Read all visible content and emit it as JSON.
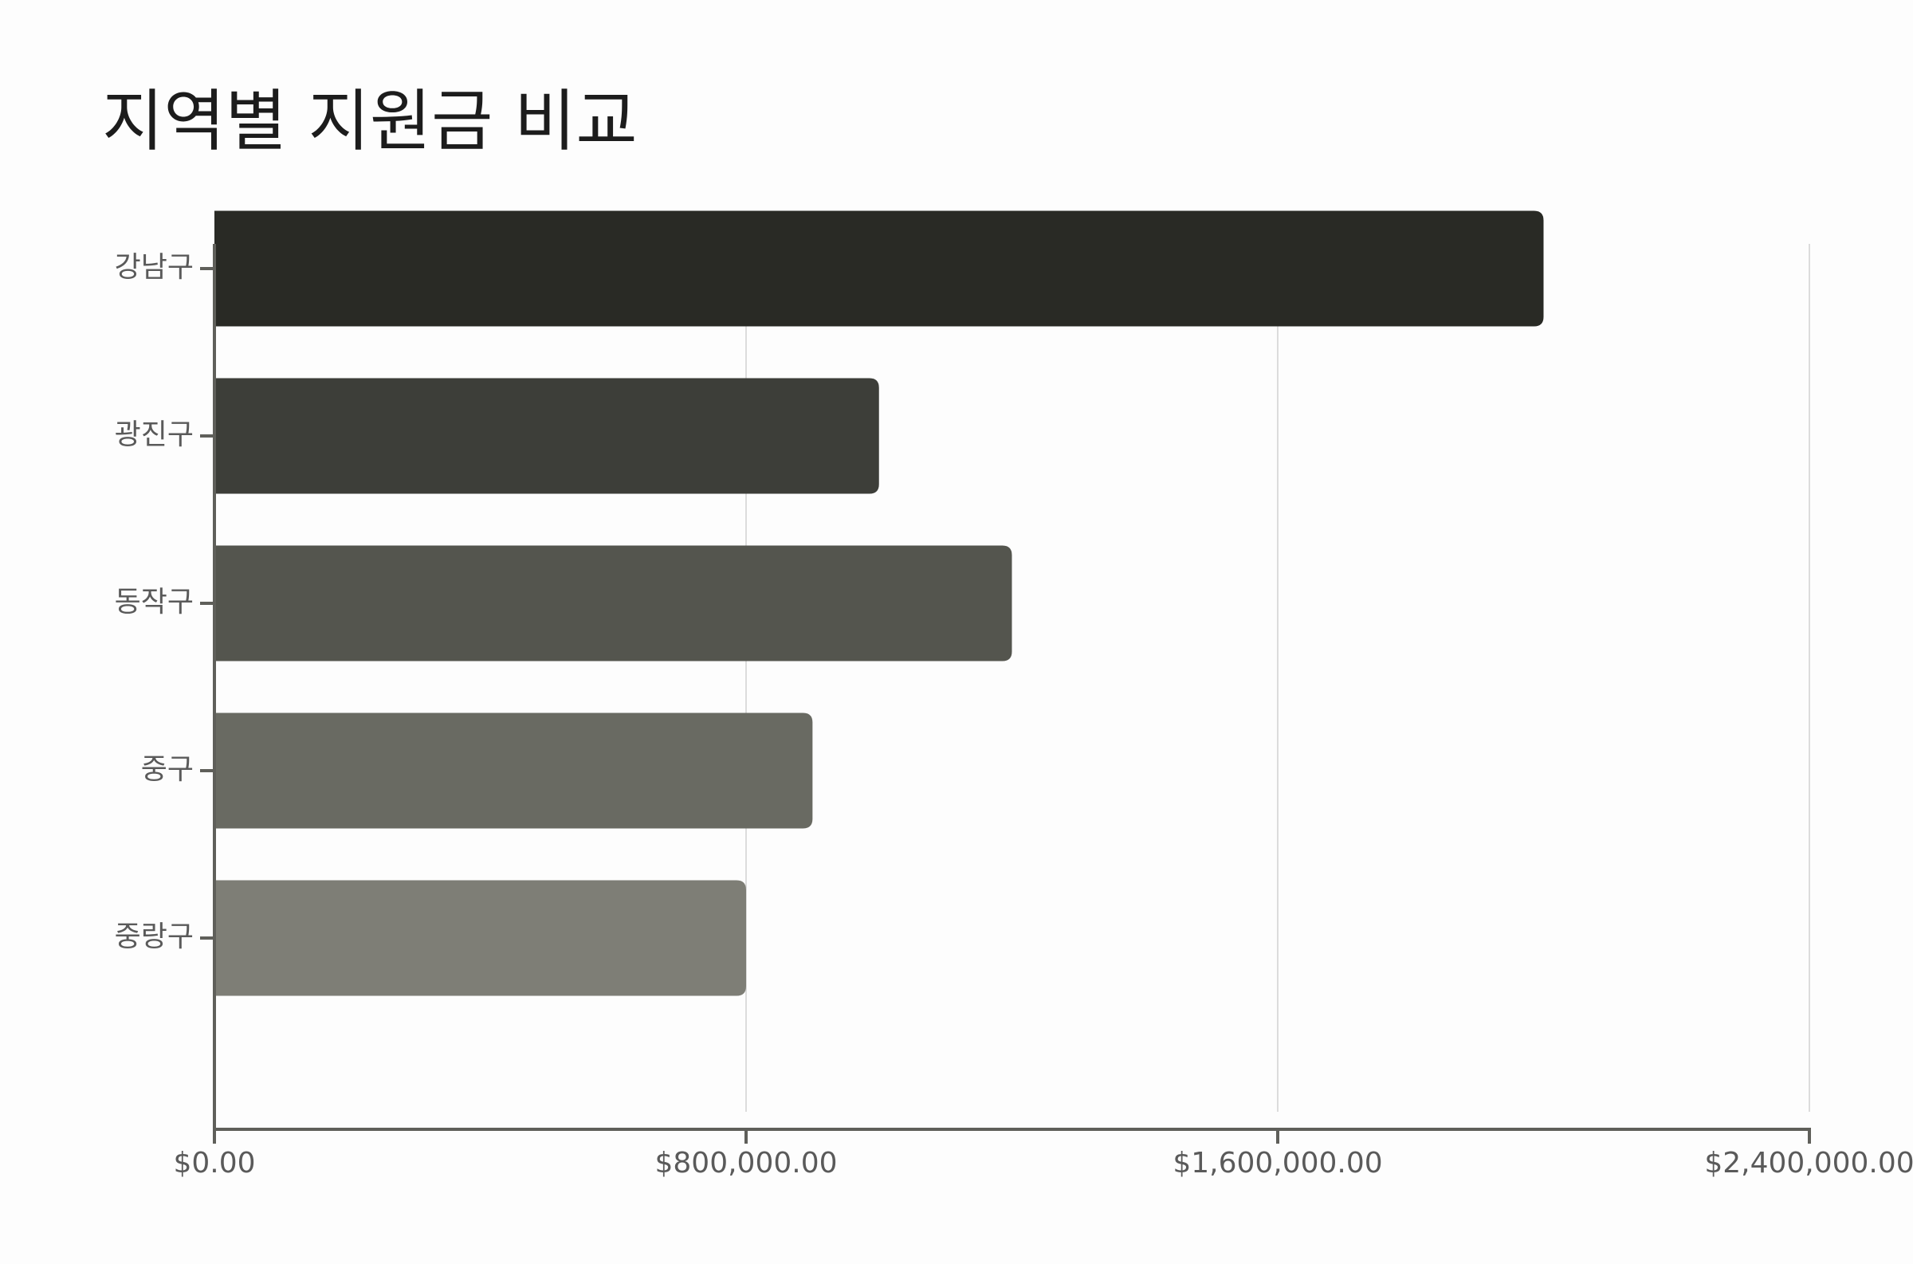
{
  "chart_data": {
    "type": "bar",
    "orientation": "horizontal",
    "title": "지역별 지원금 비교",
    "categories": [
      "강남구",
      "광진구",
      "동작구",
      "중구",
      "중랑구"
    ],
    "values": [
      2000000,
      1000000,
      1200000,
      900000,
      800000
    ],
    "colors": [
      "#292a25",
      "#3d3e39",
      "#54554e",
      "#696a62",
      "#7e7e76"
    ],
    "xlim": [
      0,
      2400000
    ],
    "xticks": [
      {
        "value": 0,
        "label": "$0.00"
      },
      {
        "value": 800000,
        "label": "$800,000.00"
      },
      {
        "value": 1600000,
        "label": "$1,600,000.00"
      },
      {
        "value": 2400000,
        "label": "$2,400,000.00"
      }
    ],
    "grid": true
  }
}
